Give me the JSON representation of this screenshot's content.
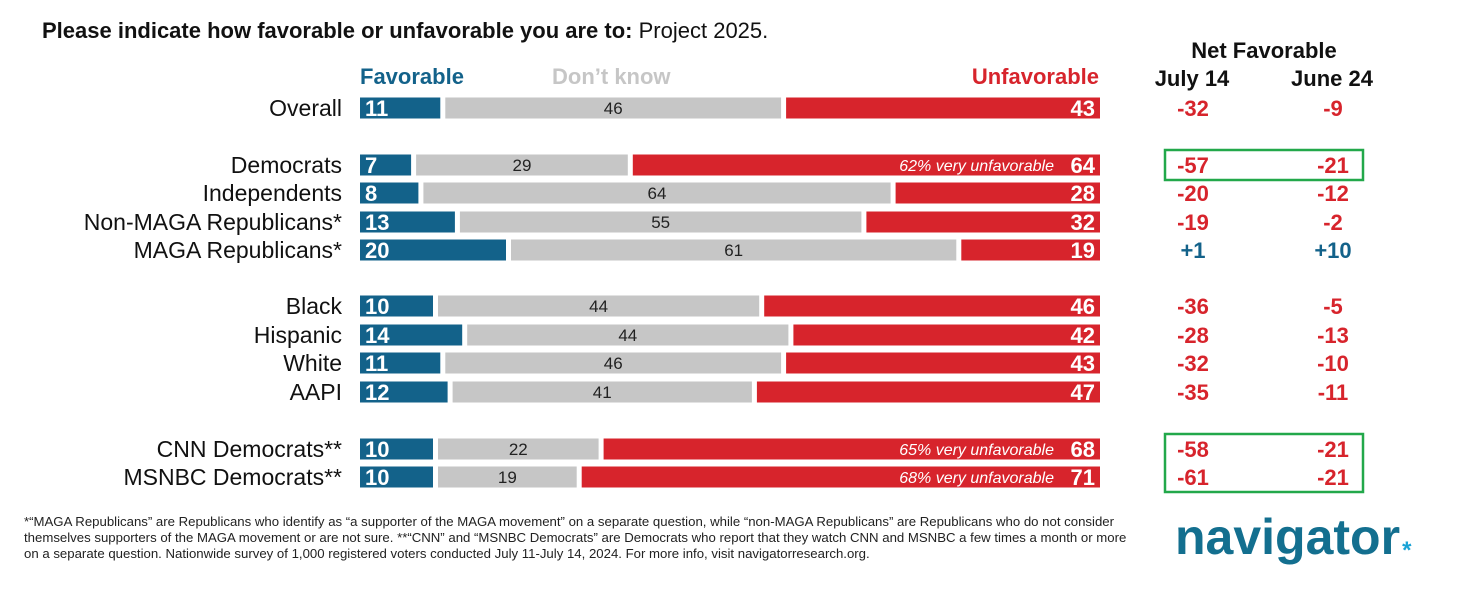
{
  "question": {
    "bold": "Please indicate how favorable or unfavorable you are to:",
    "topic": "Project 2025."
  },
  "legend": {
    "favorable": "Favorable",
    "dont_know": "Don’t know",
    "unfavorable": "Unfavorable"
  },
  "net": {
    "header": "Net Favorable",
    "col1": "July 14",
    "col2": "June 24"
  },
  "colors": {
    "favorable": "#13628a",
    "dont_know": "#c6c6c6",
    "unfavorable": "#d7242c",
    "net_negative": "#d7242c",
    "net_positive": "#13628a",
    "highlight_box": "#22a84a"
  },
  "chart_data": {
    "type": "bar",
    "stacked": "horizontal-100%",
    "categories": [
      "Overall",
      "Democrats",
      "Independents",
      "Non-MAGA Republicans*",
      "MAGA Republicans*",
      "Black",
      "Hispanic",
      "White",
      "AAPI",
      "CNN Democrats**",
      "MSNBC Democrats**"
    ],
    "series": [
      {
        "name": "Favorable",
        "values": [
          11,
          7,
          8,
          13,
          20,
          10,
          14,
          11,
          12,
          10,
          10
        ]
      },
      {
        "name": "Don’t know",
        "values": [
          46,
          29,
          64,
          55,
          61,
          44,
          44,
          46,
          41,
          22,
          19
        ]
      },
      {
        "name": "Unfavorable",
        "values": [
          43,
          64,
          28,
          32,
          19,
          46,
          42,
          43,
          47,
          68,
          71
        ]
      }
    ],
    "annotations": [
      {
        "category": "Democrats",
        "text": "62% very unfavorable"
      },
      {
        "category": "CNN Democrats**",
        "text": "65% very unfavorable"
      },
      {
        "category": "MSNBC Democrats**",
        "text": "68% very unfavorable"
      }
    ],
    "net_favorable": {
      "July 14": [
        "-32",
        "-57",
        "-20",
        "-19",
        "+1",
        "-36",
        "-28",
        "-32",
        "-35",
        "-58",
        "-61"
      ],
      "June 24": [
        "-9",
        "-21",
        "-12",
        "-2",
        "+10",
        "-5",
        "-13",
        "-10",
        "-11",
        "-21",
        "-21"
      ]
    },
    "highlighted_net_groups": [
      [
        "Democrats"
      ],
      [
        "CNN Democrats**",
        "MSNBC Democrats**"
      ]
    ],
    "xlim": [
      0,
      100
    ]
  },
  "footnote": "*“MAGA Republicans” are Republicans who identify as “a supporter of the MAGA movement” on a separate question, while “non-MAGA Republicans” are Republicans who do not consider themselves supporters of the MAGA movement or are not sure. **“CNN” and “MSNBC Democrats” are Democrats who report that they watch CNN and MSNBC a few times a month or more on a separate question. Nationwide survey of 1,000 registered voters conducted July 11-July 14, 2024. For more info, visit navigatorresearch.org.",
  "logo": {
    "text": "navigator",
    "star": "*"
  }
}
